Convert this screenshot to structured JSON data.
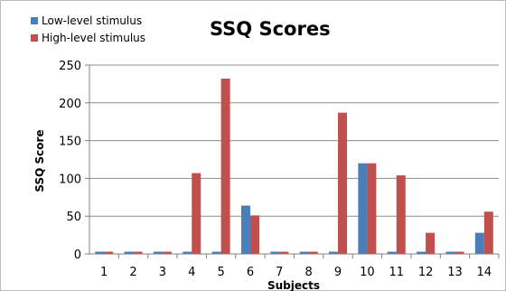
{
  "chart_data": {
    "type": "bar",
    "title": "SSQ Scores",
    "xlabel": "Subjects",
    "ylabel": "SSQ Score",
    "ylim": [
      0,
      250
    ],
    "yticks": [
      0,
      50,
      100,
      150,
      200,
      250
    ],
    "grid": true,
    "legend_position": "top-left",
    "categories": [
      "1",
      "2",
      "3",
      "4",
      "5",
      "6",
      "7",
      "8",
      "9",
      "10",
      "11",
      "12",
      "13",
      "14"
    ],
    "series": [
      {
        "name": "Low-level stimulus",
        "color": "#4a7ebb",
        "values": [
          3,
          3,
          3,
          3,
          3,
          64,
          3,
          3,
          3,
          120,
          3,
          3,
          3,
          28
        ]
      },
      {
        "name": "High-level stimulus",
        "color": "#c0504d",
        "values": [
          3,
          3,
          3,
          107,
          232,
          51,
          3,
          3,
          187,
          120,
          104,
          28,
          3,
          56
        ]
      }
    ]
  }
}
